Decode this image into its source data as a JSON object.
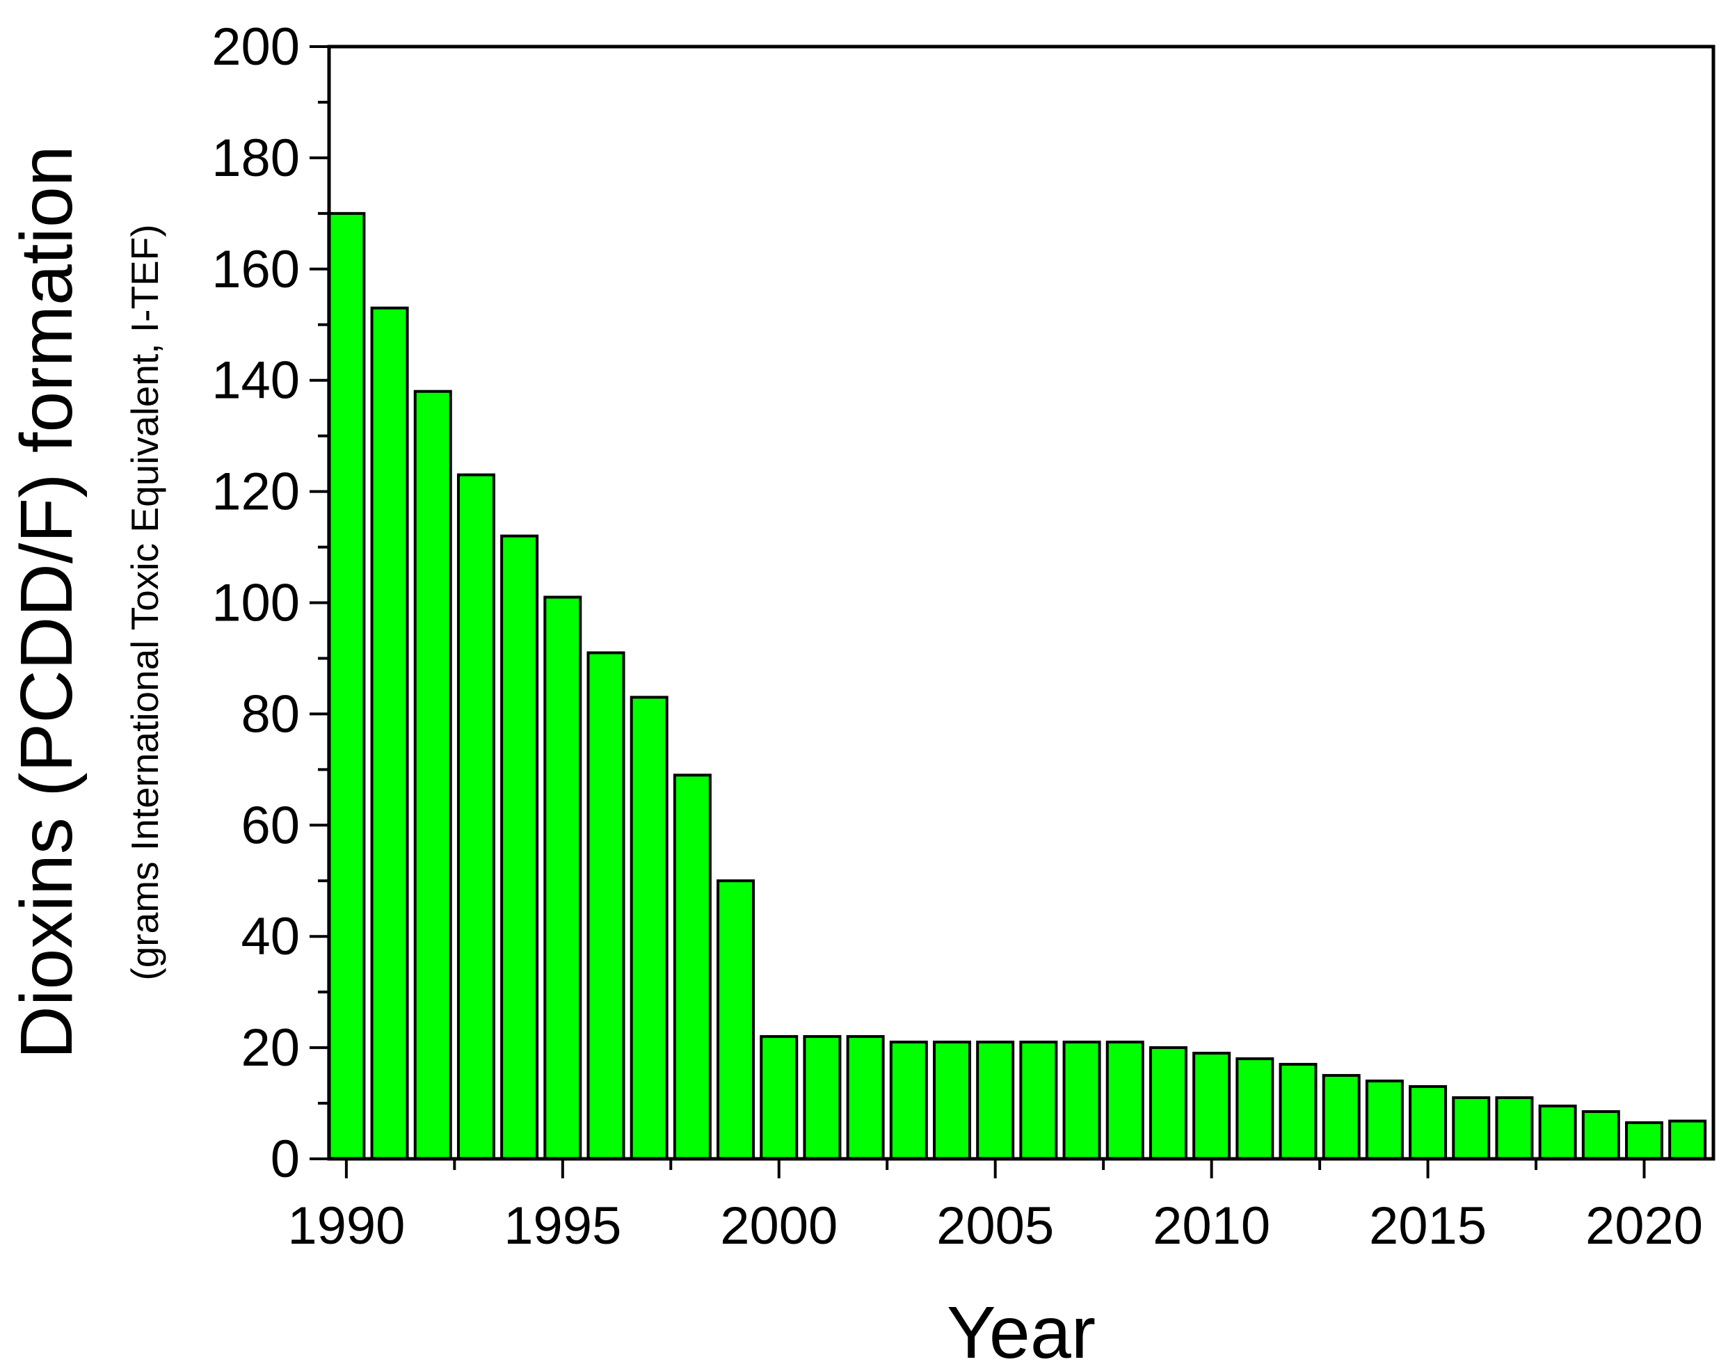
{
  "chart_data": {
    "type": "bar",
    "title": "",
    "xlabel": "Year",
    "ylabel": "Dioxins (PCDD/F) formation",
    "ylabel_sub": "(grams International Toxic Equivalent, I-TEF)",
    "categories": [
      1990,
      1991,
      1992,
      1993,
      1994,
      1995,
      1996,
      1997,
      1998,
      1999,
      2000,
      2001,
      2002,
      2003,
      2004,
      2005,
      2006,
      2007,
      2008,
      2009,
      2010,
      2011,
      2012,
      2013,
      2014,
      2015,
      2016,
      2017,
      2018,
      2019,
      2020,
      2021
    ],
    "values": [
      170,
      153,
      138,
      123,
      112,
      101,
      91,
      83,
      69,
      50,
      22,
      22,
      22,
      21,
      21,
      21,
      21,
      21,
      21,
      20,
      19,
      18,
      17,
      15,
      14,
      13,
      11,
      11,
      9.5,
      8.5,
      6.5,
      6.8
    ],
    "ylim": [
      0,
      200
    ],
    "xlim": [
      1989.6,
      2021.6
    ],
    "yticks": [
      0,
      20,
      40,
      60,
      80,
      100,
      120,
      140,
      160,
      180,
      200
    ],
    "xticks": [
      1990,
      1995,
      2000,
      2005,
      2010,
      2015,
      2020
    ],
    "bar_color": "#00ff00",
    "grid": false,
    "legend": "none"
  }
}
